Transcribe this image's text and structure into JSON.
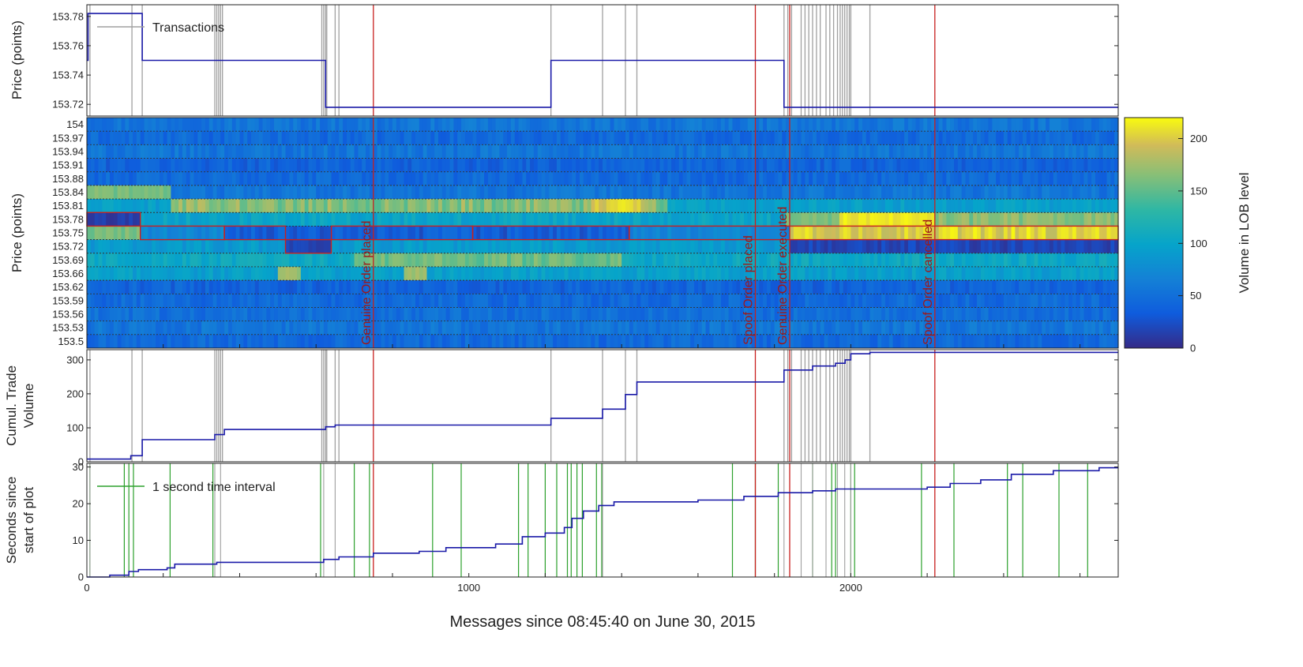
{
  "chart_data": [
    {
      "panel": "price",
      "type": "line",
      "ylabel": "Price (points)",
      "ylim": [
        153.712,
        153.788
      ],
      "yticks": [
        "153.72",
        "153.74",
        "153.76",
        "153.78"
      ],
      "legend": {
        "label": "Transactions",
        "placement": "top-left",
        "color": "#a0a0a0"
      },
      "series": [
        {
          "steps": [
            [
              0,
              153.75
            ],
            [
              3,
              153.782
            ],
            [
              145,
              153.75
            ],
            [
              625,
              153.718
            ],
            [
              1215,
              153.75
            ],
            [
              1825,
              153.718
            ],
            [
              2700,
              153.718
            ]
          ]
        }
      ]
    },
    {
      "panel": "lob",
      "type": "heatmap",
      "ylabel": "Price (points)",
      "ytick_labels": [
        "154",
        "153.97",
        "153.94",
        "153.91",
        "153.88",
        "153.84",
        "153.81",
        "153.78",
        "153.75",
        "153.72",
        "153.69",
        "153.66",
        "153.62",
        "153.59",
        "153.56",
        "153.53",
        "153.5"
      ],
      "colorbar": {
        "label": "Volume in LOB level",
        "min": 0,
        "max": 220,
        "ticks": [
          0,
          50,
          100,
          150,
          200
        ]
      },
      "events": [
        {
          "x": 750,
          "label": "Genuine Order placed"
        },
        {
          "x": 1750,
          "label": "Spoof Order placed"
        },
        {
          "x": 1840,
          "label": "Genuine Order executed"
        },
        {
          "x": 2220,
          "label": "Spoof Order cancelled"
        }
      ]
    },
    {
      "panel": "volume",
      "type": "line",
      "ylabel_lines": [
        "Cumul. Trade",
        "Volume"
      ],
      "ylim": [
        0,
        330
      ],
      "yticks": [
        0,
        100,
        200,
        300
      ],
      "series": [
        {
          "steps": [
            [
              0,
              8
            ],
            [
              115,
              18
            ],
            [
              145,
              65
            ],
            [
              335,
              80
            ],
            [
              360,
              95
            ],
            [
              625,
              103
            ],
            [
              650,
              108
            ],
            [
              1215,
              128
            ],
            [
              1350,
              155
            ],
            [
              1410,
              198
            ],
            [
              1440,
              235
            ],
            [
              1825,
              270
            ],
            [
              1900,
              282
            ],
            [
              1960,
              290
            ],
            [
              1985,
              300
            ],
            [
              2000,
              318
            ],
            [
              2050,
              322
            ],
            [
              2700,
              322
            ]
          ]
        }
      ]
    },
    {
      "panel": "time",
      "type": "line",
      "ylabel_lines": [
        "Seconds since",
        "start of plot"
      ],
      "ylim": [
        0,
        31
      ],
      "yticks": [
        0,
        10,
        20,
        30
      ],
      "xlabel": "Messages since 08:45:40 on June 30, 2015",
      "xlim": [
        0,
        2700
      ],
      "xticks": [
        0,
        1000,
        2000
      ],
      "legend": {
        "label": "1 second time interval",
        "placement": "top-left",
        "color": "#2ca02c"
      },
      "series": [
        {
          "steps": [
            [
              0,
              0
            ],
            [
              60,
              0.5
            ],
            [
              110,
              1.5
            ],
            [
              135,
              2
            ],
            [
              210,
              2.5
            ],
            [
              230,
              3.5
            ],
            [
              340,
              4
            ],
            [
              620,
              4.8
            ],
            [
              660,
              5.5
            ],
            [
              750,
              6.5
            ],
            [
              870,
              7
            ],
            [
              940,
              8
            ],
            [
              1070,
              9
            ],
            [
              1140,
              11
            ],
            [
              1200,
              12
            ],
            [
              1250,
              13.5
            ],
            [
              1270,
              16
            ],
            [
              1300,
              18
            ],
            [
              1340,
              19.5
            ],
            [
              1380,
              20.5
            ],
            [
              1600,
              21
            ],
            [
              1720,
              22
            ],
            [
              1810,
              23
            ],
            [
              1900,
              23.5
            ],
            [
              1960,
              24
            ],
            [
              2200,
              24.5
            ],
            [
              2260,
              25.5
            ],
            [
              2340,
              26.5
            ],
            [
              2420,
              28
            ],
            [
              2530,
              29
            ],
            [
              2650,
              29.8
            ],
            [
              2700,
              29.8
            ]
          ]
        }
      ]
    }
  ],
  "transactions_x": [
    8,
    118,
    145,
    335,
    340,
    345,
    350,
    355,
    615,
    620,
    625,
    628,
    650,
    660,
    1215,
    1350,
    1410,
    1440,
    1825,
    1835,
    1845,
    1870,
    1880,
    1890,
    1900,
    1910,
    1920,
    1935,
    1945,
    1955,
    1965,
    1972,
    1978,
    1984,
    1990,
    1996,
    2000,
    2050
  ],
  "seconds_x": [
    8,
    98,
    110,
    122,
    218,
    330,
    612,
    700,
    740,
    905,
    980,
    1130,
    1155,
    1200,
    1230,
    1258,
    1268,
    1283,
    1297,
    1334,
    1348,
    1690,
    1750,
    1810,
    1900,
    1950,
    1960,
    2000,
    2010,
    2185,
    2270,
    2410,
    2450,
    2545,
    2620
  ],
  "colors": {
    "price_line": "#1a1aa8",
    "transactions": "#a0a0a0",
    "events": "#c8201e",
    "seconds": "#2ca02c",
    "event_text": "#a01818",
    "grid": "#333333"
  }
}
